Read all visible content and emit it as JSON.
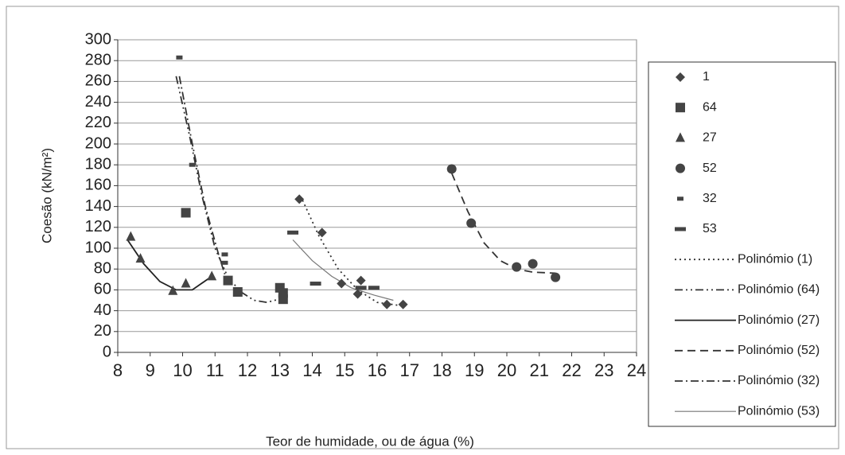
{
  "chart_data": {
    "type": "scatter",
    "xlabel": "Teor de humidade, ou de água  (%)",
    "ylabel": "Coesão (kN/m²)",
    "xlim": [
      8,
      24
    ],
    "ylim": [
      0,
      300
    ],
    "xticks": [
      8,
      9,
      10,
      11,
      12,
      13,
      14,
      15,
      16,
      17,
      18,
      19,
      20,
      21,
      22,
      23,
      24
    ],
    "yticks": [
      0,
      20,
      40,
      60,
      80,
      100,
      120,
      140,
      160,
      180,
      200,
      220,
      240,
      260,
      280,
      300
    ],
    "grid": true,
    "series": [
      {
        "name": "1",
        "marker": "diamond",
        "color": "#444444",
        "x": [
          13.6,
          14.3,
          14.9,
          15.5,
          15.4,
          16.3,
          16.8
        ],
        "values": [
          147,
          115,
          66,
          69,
          56,
          46,
          46
        ]
      },
      {
        "name": "64",
        "marker": "square",
        "color": "#444444",
        "x": [
          10.1,
          11.4,
          11.7,
          13.0,
          13.1,
          13.1
        ],
        "values": [
          134,
          69,
          58,
          62,
          51,
          57
        ]
      },
      {
        "name": "27",
        "marker": "triangle",
        "color": "#444444",
        "x": [
          8.4,
          8.7,
          9.7,
          10.1,
          10.9
        ],
        "values": [
          111,
          90,
          59,
          66,
          73
        ]
      },
      {
        "name": "52",
        "marker": "circle",
        "color": "#444444",
        "x": [
          18.3,
          18.9,
          20.3,
          20.8,
          21.5
        ],
        "values": [
          176,
          124,
          82,
          85,
          72
        ]
      },
      {
        "name": "32",
        "marker": "small-dash",
        "color": "#444444",
        "x": [
          9.9,
          10.3,
          11.3,
          11.3
        ],
        "values": [
          283,
          180,
          94,
          86
        ]
      },
      {
        "name": "53",
        "marker": "dash",
        "color": "#444444",
        "x": [
          13.4,
          14.1,
          15.5,
          15.9
        ],
        "values": [
          115,
          66,
          62,
          62
        ]
      }
    ],
    "trendlines": [
      {
        "name": "Polinómio (1)",
        "dash": "dotted",
        "color": "#333333",
        "x": [
          13.7,
          14.2,
          14.8,
          15.4,
          16.0,
          16.7
        ],
        "values": [
          146,
          112,
          80,
          60,
          48,
          45
        ]
      },
      {
        "name": "Polinómio (64)",
        "dash": "dash-dot-dot",
        "color": "#333333",
        "x": [
          9.8,
          10.2,
          10.6,
          11.0,
          11.4,
          11.8,
          12.2,
          12.6,
          13.1
        ],
        "values": [
          265,
          210,
          150,
          100,
          72,
          58,
          50,
          48,
          52
        ]
      },
      {
        "name": "Polinómio (27)",
        "dash": "solid",
        "color": "#222222",
        "x": [
          8.3,
          8.8,
          9.3,
          9.8,
          10.3,
          10.9
        ],
        "values": [
          108,
          85,
          68,
          60,
          60,
          73
        ]
      },
      {
        "name": "Polinómio (52)",
        "dash": "dashed",
        "color": "#333333",
        "x": [
          18.3,
          18.8,
          19.3,
          19.8,
          20.3,
          20.8,
          21.5
        ],
        "values": [
          172,
          135,
          105,
          88,
          80,
          77,
          76
        ]
      },
      {
        "name": "Polinómio (32)",
        "dash": "dash-dot",
        "color": "#333333",
        "x": [
          9.9,
          10.3,
          10.7,
          11.1,
          11.3
        ],
        "values": [
          265,
          200,
          140,
          95,
          75
        ]
      },
      {
        "name": "Polinómio (53)",
        "dash": "thin",
        "color": "#777777",
        "x": [
          13.4,
          14.0,
          14.6,
          15.2,
          15.9,
          16.5
        ],
        "values": [
          108,
          88,
          73,
          62,
          55,
          50
        ]
      }
    ]
  }
}
